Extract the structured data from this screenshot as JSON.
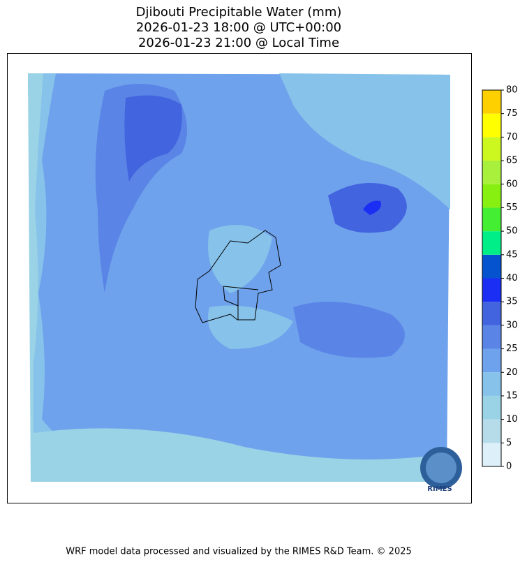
{
  "header": {
    "title": [
      "Djibouti Precipitable Water (mm)",
      "2026-01-23 18:00 @ UTC+00:00",
      "2026-01-23 21:00 @ Local Time"
    ]
  },
  "colorbar": {
    "ticks": [
      0,
      5,
      10,
      15,
      20,
      25,
      30,
      35,
      40,
      45,
      50,
      55,
      60,
      65,
      70,
      75,
      80
    ],
    "colors": [
      "#ddeff8",
      "#b6dce9",
      "#9ad2e6",
      "#86c2ea",
      "#6fa2ec",
      "#5a85e6",
      "#4264df",
      "#1b2ff4",
      "#0553cf",
      "#00ee88",
      "#44ee33",
      "#88f011",
      "#a8f03c",
      "#ccf820",
      "#ffff00",
      "#ffd000"
    ]
  },
  "logo": "RIMES",
  "footer": "WRF model data processed and visualized by the RIMES R&D Team. © 2025"
}
